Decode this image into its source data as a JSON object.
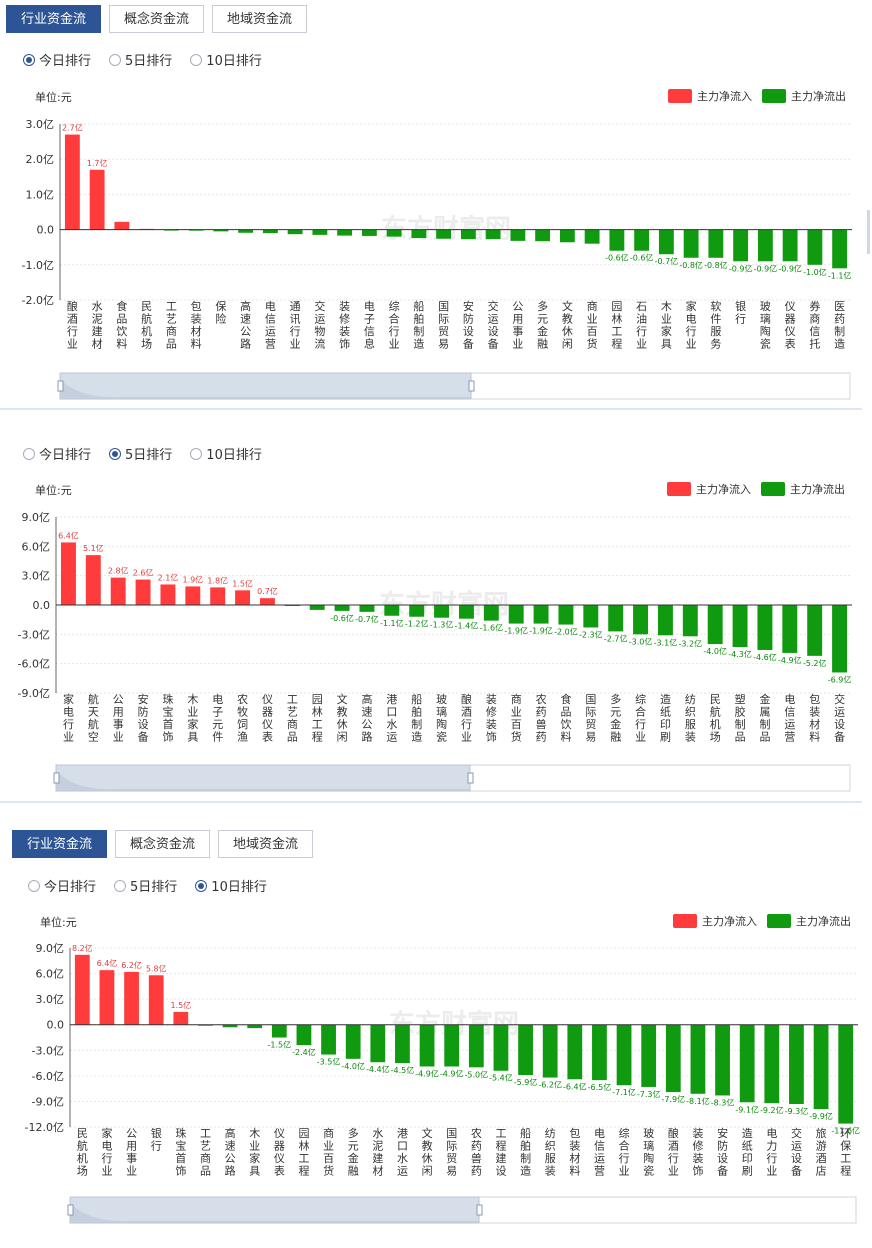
{
  "top_tabs": [
    "行业资金流",
    "概念资金流",
    "地域资金流"
  ],
  "radio_options": [
    "今日排行",
    "5日排行",
    "10日排行"
  ],
  "unit_label": "单位:元",
  "legend": {
    "inflow": "主力净流入",
    "outflow": "主力净流出"
  },
  "watermark": "东方财富网",
  "colors": {
    "inflow": "#ff3b3b",
    "outflow": "#0f9a0f",
    "tab_active": "#2d5596"
  },
  "chart_data": [
    {
      "type": "bar",
      "selected": "今日排行",
      "yticks": [
        "3.0亿",
        "2.0亿",
        "1.0亿",
        "0.0",
        "-1.0亿",
        "-2.0亿"
      ],
      "ylim": [
        -2.0,
        3.0
      ],
      "categories": [
        "酿酒行业",
        "水泥建材",
        "食品饮料",
        "民航机场",
        "工艺商品",
        "包装材料",
        "保险",
        "高速公路",
        "电信运营",
        "通讯行业",
        "交运物流",
        "装修装饰",
        "电子信息",
        "综合行业",
        "船舶制造",
        "国际贸易",
        "安防设备",
        "交运设备",
        "公用事业",
        "多元金融",
        "文教休闲",
        "商业百货",
        "园林工程",
        "石油行业",
        "木业家具",
        "家电行业",
        "软件服务",
        "银行",
        "玻璃陶瓷",
        "仪器仪表",
        "券商信托",
        "医药制造"
      ],
      "values": [
        2.7,
        1.7,
        0.22,
        0.02,
        -0.02,
        -0.03,
        -0.05,
        -0.09,
        -0.1,
        -0.13,
        -0.15,
        -0.17,
        -0.18,
        -0.2,
        -0.24,
        -0.26,
        -0.27,
        -0.27,
        -0.32,
        -0.33,
        -0.36,
        -0.4,
        -0.6,
        -0.6,
        -0.7,
        -0.8,
        -0.8,
        -0.9,
        -0.9,
        -0.9,
        -1.0,
        -1.1
      ],
      "data_labels": [
        "2.7亿",
        "1.7亿",
        "",
        "",
        "",
        "",
        "",
        "",
        "",
        "",
        "",
        "",
        "",
        "",
        "",
        "",
        "",
        "",
        "",
        "",
        "",
        "",
        "-0.6亿",
        "-0.6亿",
        "-0.7亿",
        "-0.8亿",
        "-0.8亿",
        "-0.9亿",
        "-0.9亿",
        "-0.9亿",
        "-1.0亿",
        "-1.1亿"
      ]
    },
    {
      "type": "bar",
      "selected": "5日排行",
      "yticks": [
        "9.0亿",
        "6.0亿",
        "3.0亿",
        "0.0",
        "-3.0亿",
        "-6.0亿",
        "-9.0亿"
      ],
      "ylim": [
        -9.0,
        9.0
      ],
      "categories": [
        "家电行业",
        "航天航空",
        "公用事业",
        "安防设备",
        "珠宝首饰",
        "木业家具",
        "电子元件",
        "农牧饲渔",
        "仪器仪表",
        "工艺商品",
        "园林工程",
        "文教休闲",
        "高速公路",
        "港口水运",
        "船舶制造",
        "玻璃陶瓷",
        "酿酒行业",
        "装修装饰",
        "商业百货",
        "农药兽药",
        "食品饮料",
        "国际贸易",
        "多元金融",
        "综合行业",
        "造纸印刷",
        "纺织服装",
        "民航机场",
        "塑胶制品",
        "金属制品",
        "电信运营",
        "包装材料",
        "交运设备"
      ],
      "values": [
        6.4,
        5.1,
        2.8,
        2.6,
        2.1,
        1.9,
        1.8,
        1.5,
        0.7,
        -0.05,
        -0.5,
        -0.6,
        -0.7,
        -1.1,
        -1.2,
        -1.3,
        -1.4,
        -1.6,
        -1.9,
        -1.9,
        -2.0,
        -2.3,
        -2.7,
        -3.0,
        -3.1,
        -3.2,
        -4.0,
        -4.3,
        -4.6,
        -4.9,
        -5.2,
        -6.9
      ],
      "data_labels": [
        "6.4亿",
        "5.1亿",
        "2.8亿",
        "2.6亿",
        "2.1亿",
        "1.9亿",
        "1.8亿",
        "1.5亿",
        "0.7亿",
        "",
        "",
        "-0.6亿",
        "-0.7亿",
        "-1.1亿",
        "-1.2亿",
        "-1.3亿",
        "-1.4亿",
        "-1.6亿",
        "-1.9亿",
        "-1.9亿",
        "-2.0亿",
        "-2.3亿",
        "-2.7亿",
        "-3.0亿",
        "-3.1亿",
        "-3.2亿",
        "-4.0亿",
        "-4.3亿",
        "-4.6亿",
        "-4.9亿",
        "-5.2亿",
        "-6.9亿"
      ]
    },
    {
      "type": "bar",
      "selected": "10日排行",
      "yticks": [
        "9.0亿",
        "6.0亿",
        "3.0亿",
        "0.0",
        "-3.0亿",
        "-6.0亿",
        "-9.0亿",
        "-12.0亿"
      ],
      "ylim": [
        -12.0,
        9.0
      ],
      "categories": [
        "民航机场",
        "家电行业",
        "公用事业",
        "银行",
        "珠宝首饰",
        "工艺商品",
        "高速公路",
        "木业家具",
        "仪器仪表",
        "园林工程",
        "商业百货",
        "多元金融",
        "水泥建材",
        "港口水运",
        "文教休闲",
        "国际贸易",
        "农药兽药",
        "工程建设",
        "船舶制造",
        "纺织服装",
        "包装材料",
        "电信运营",
        "综合行业",
        "玻璃陶瓷",
        "酿酒行业",
        "装修装饰",
        "安防设备",
        "造纸印刷",
        "电力行业",
        "交运设备",
        "旅游酒店",
        "环保工程"
      ],
      "values": [
        8.2,
        6.4,
        6.2,
        5.8,
        1.5,
        -0.05,
        -0.3,
        -0.4,
        -1.5,
        -2.4,
        -3.5,
        -4.0,
        -4.4,
        -4.5,
        -4.9,
        -4.9,
        -5.0,
        -5.4,
        -5.9,
        -6.2,
        -6.4,
        -6.5,
        -7.1,
        -7.3,
        -7.9,
        -8.1,
        -8.3,
        -9.1,
        -9.2,
        -9.3,
        -9.9,
        -11.6
      ],
      "data_labels": [
        "8.2亿",
        "6.4亿",
        "6.2亿",
        "5.8亿",
        "1.5亿",
        "",
        "",
        "",
        "-1.5亿",
        "-2.4亿",
        "-3.5亿",
        "-4.0亿",
        "-4.4亿",
        "-4.5亿",
        "-4.9亿",
        "-4.9亿",
        "-5.0亿",
        "-5.4亿",
        "-5.9亿",
        "-6.2亿",
        "-6.4亿",
        "-6.5亿",
        "-7.1亿",
        "-7.3亿",
        "-7.9亿",
        "-8.1亿",
        "-8.3亿",
        "-9.1亿",
        "-9.2亿",
        "-9.3亿",
        "-9.9亿",
        "-11.6亿"
      ]
    }
  ]
}
